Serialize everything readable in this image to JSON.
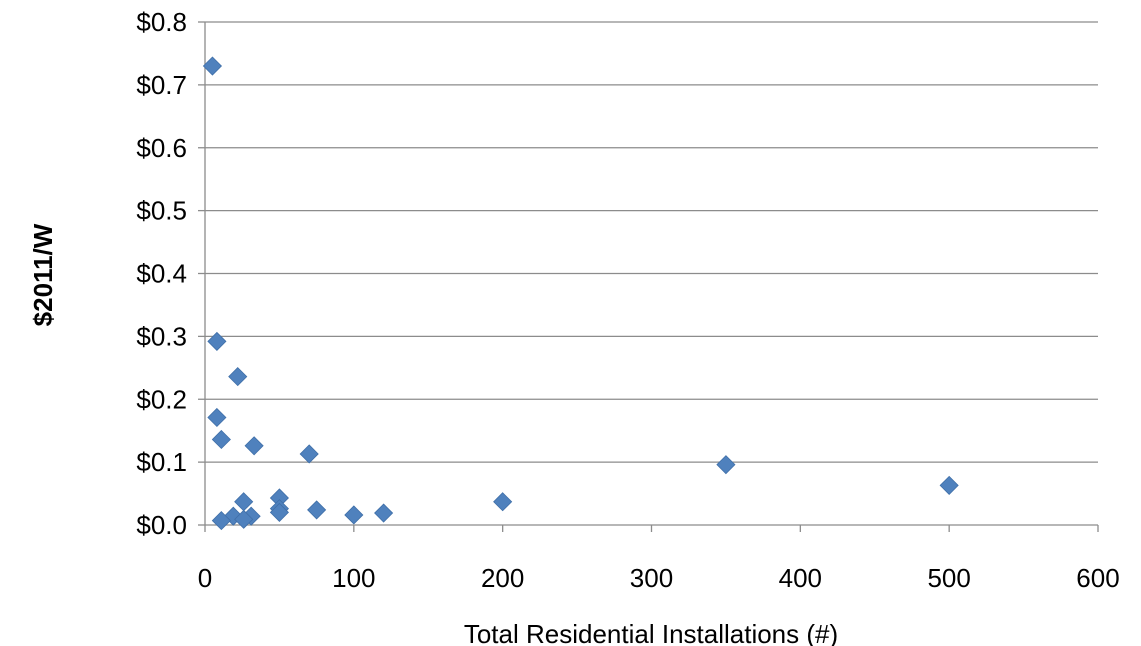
{
  "chart_data": {
    "type": "scatter",
    "title": "",
    "xlabel": "Total Residential Installations (#)",
    "ylabel": "$2011/W",
    "xlim": [
      0,
      600
    ],
    "ylim": [
      0,
      0.8
    ],
    "grid": "horizontal",
    "legend": "none",
    "marker": "diamond",
    "marker_color": "#4f81bd",
    "x_ticks": [
      {
        "value": 0,
        "label": "0"
      },
      {
        "value": 100,
        "label": "100"
      },
      {
        "value": 200,
        "label": "200"
      },
      {
        "value": 300,
        "label": "300"
      },
      {
        "value": 400,
        "label": "400"
      },
      {
        "value": 500,
        "label": "500"
      },
      {
        "value": 600,
        "label": "600"
      }
    ],
    "y_ticks": [
      {
        "value": 0,
        "label": "$0.0"
      },
      {
        "value": 0.1,
        "label": "$0.1"
      },
      {
        "value": 0.2,
        "label": "$0.2"
      },
      {
        "value": 0.3,
        "label": "$0.3"
      },
      {
        "value": 0.4,
        "label": "$0.4"
      },
      {
        "value": 0.5,
        "label": "$0.5"
      },
      {
        "value": 0.6,
        "label": "$0.6"
      },
      {
        "value": 0.7,
        "label": "$0.7"
      },
      {
        "value": 0.8,
        "label": "$0.8"
      }
    ],
    "series": [
      {
        "points": [
          {
            "x": 5,
            "y": 0.73
          },
          {
            "x": 8,
            "y": 0.292
          },
          {
            "x": 22,
            "y": 0.236
          },
          {
            "x": 8,
            "y": 0.171
          },
          {
            "x": 11,
            "y": 0.136
          },
          {
            "x": 33,
            "y": 0.126
          },
          {
            "x": 70,
            "y": 0.113
          },
          {
            "x": 350,
            "y": 0.096
          },
          {
            "x": 500,
            "y": 0.063
          },
          {
            "x": 50,
            "y": 0.043
          },
          {
            "x": 26,
            "y": 0.037
          },
          {
            "x": 200,
            "y": 0.037
          },
          {
            "x": 50,
            "y": 0.026
          },
          {
            "x": 75,
            "y": 0.024
          },
          {
            "x": 50,
            "y": 0.02
          },
          {
            "x": 120,
            "y": 0.019
          },
          {
            "x": 100,
            "y": 0.016
          },
          {
            "x": 19,
            "y": 0.014
          },
          {
            "x": 31,
            "y": 0.014
          },
          {
            "x": 26,
            "y": 0.009
          },
          {
            "x": 11,
            "y": 0.007
          }
        ]
      }
    ]
  }
}
